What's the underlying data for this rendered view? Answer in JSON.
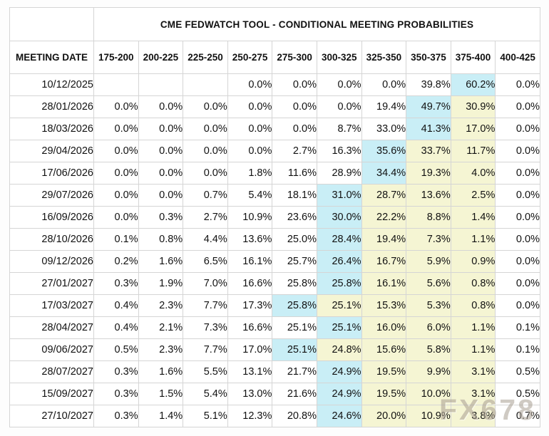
{
  "watermark": "FX678",
  "colors": {
    "max_probability_highlight": "#c9eef6",
    "elevated_probability_highlight": "#f5f5d3",
    "grid_border": "#d5d5d5",
    "watermark_color": "#a99f93"
  },
  "chart_data": {
    "type": "table",
    "title": "CME FEDWATCH TOOL - CONDITIONAL MEETING PROBABILITIES",
    "columns": [
      "MEETING DATE",
      "175-200",
      "200-225",
      "225-250",
      "250-275",
      "275-300",
      "300-325",
      "325-350",
      "350-375",
      "375-400",
      "400-425"
    ],
    "highlight_legend": {
      "c": "highest probability in row (cyan)",
      "y": "elevated probability (pale yellow)"
    },
    "rows": [
      {
        "date": "10/12/2025",
        "values": [
          "",
          "",
          "",
          "0.0%",
          "0.0%",
          "0.0%",
          "0.0%",
          "39.8%",
          "60.2%",
          "0.0%"
        ],
        "highlights": [
          "",
          "",
          "",
          "",
          "",
          "",
          "",
          "",
          "c",
          ""
        ]
      },
      {
        "date": "28/01/2026",
        "values": [
          "0.0%",
          "0.0%",
          "0.0%",
          "0.0%",
          "0.0%",
          "0.0%",
          "19.4%",
          "49.7%",
          "30.9%",
          "0.0%"
        ],
        "highlights": [
          "",
          "",
          "",
          "",
          "",
          "",
          "",
          "c",
          "y",
          ""
        ]
      },
      {
        "date": "18/03/2026",
        "values": [
          "0.0%",
          "0.0%",
          "0.0%",
          "0.0%",
          "0.0%",
          "8.7%",
          "33.0%",
          "41.3%",
          "17.0%",
          "0.0%"
        ],
        "highlights": [
          "",
          "",
          "",
          "",
          "",
          "",
          "",
          "c",
          "y",
          ""
        ]
      },
      {
        "date": "29/04/2026",
        "values": [
          "0.0%",
          "0.0%",
          "0.0%",
          "0.0%",
          "2.7%",
          "16.3%",
          "35.6%",
          "33.7%",
          "11.7%",
          "0.0%"
        ],
        "highlights": [
          "",
          "",
          "",
          "",
          "",
          "",
          "c",
          "y",
          "y",
          ""
        ]
      },
      {
        "date": "17/06/2026",
        "values": [
          "0.0%",
          "0.0%",
          "0.0%",
          "1.8%",
          "11.6%",
          "28.9%",
          "34.4%",
          "19.3%",
          "4.0%",
          "0.0%"
        ],
        "highlights": [
          "",
          "",
          "",
          "",
          "",
          "",
          "c",
          "y",
          "y",
          ""
        ]
      },
      {
        "date": "29/07/2026",
        "values": [
          "0.0%",
          "0.0%",
          "0.7%",
          "5.4%",
          "18.1%",
          "31.0%",
          "28.7%",
          "13.6%",
          "2.5%",
          "0.0%"
        ],
        "highlights": [
          "",
          "",
          "",
          "",
          "",
          "c",
          "y",
          "y",
          "y",
          ""
        ]
      },
      {
        "date": "16/09/2026",
        "values": [
          "0.0%",
          "0.3%",
          "2.7%",
          "10.9%",
          "23.6%",
          "30.0%",
          "22.2%",
          "8.8%",
          "1.4%",
          "0.0%"
        ],
        "highlights": [
          "",
          "",
          "",
          "",
          "",
          "c",
          "y",
          "y",
          "y",
          ""
        ]
      },
      {
        "date": "28/10/2026",
        "values": [
          "0.1%",
          "0.8%",
          "4.4%",
          "13.6%",
          "25.0%",
          "28.4%",
          "19.4%",
          "7.3%",
          "1.1%",
          "0.0%"
        ],
        "highlights": [
          "",
          "",
          "",
          "",
          "",
          "c",
          "y",
          "y",
          "y",
          ""
        ]
      },
      {
        "date": "09/12/2026",
        "values": [
          "0.2%",
          "1.6%",
          "6.5%",
          "16.1%",
          "25.7%",
          "26.4%",
          "16.7%",
          "5.9%",
          "0.9%",
          "0.0%"
        ],
        "highlights": [
          "",
          "",
          "",
          "",
          "",
          "c",
          "y",
          "y",
          "y",
          ""
        ]
      },
      {
        "date": "27/01/2027",
        "values": [
          "0.3%",
          "1.9%",
          "7.0%",
          "16.6%",
          "25.8%",
          "25.8%",
          "16.1%",
          "5.6%",
          "0.8%",
          "0.0%"
        ],
        "highlights": [
          "",
          "",
          "",
          "",
          "",
          "c",
          "y",
          "y",
          "y",
          ""
        ]
      },
      {
        "date": "17/03/2027",
        "values": [
          "0.4%",
          "2.3%",
          "7.7%",
          "17.3%",
          "25.8%",
          "25.1%",
          "15.3%",
          "5.3%",
          "0.8%",
          "0.0%"
        ],
        "highlights": [
          "",
          "",
          "",
          "",
          "c",
          "y",
          "y",
          "y",
          "y",
          ""
        ]
      },
      {
        "date": "28/04/2027",
        "values": [
          "0.4%",
          "2.1%",
          "7.3%",
          "16.6%",
          "25.1%",
          "25.1%",
          "16.0%",
          "6.0%",
          "1.1%",
          "0.1%"
        ],
        "highlights": [
          "",
          "",
          "",
          "",
          "",
          "c",
          "y",
          "y",
          "y",
          ""
        ]
      },
      {
        "date": "09/06/2027",
        "values": [
          "0.5%",
          "2.3%",
          "7.7%",
          "17.0%",
          "25.1%",
          "24.8%",
          "15.6%",
          "5.8%",
          "1.1%",
          "0.1%"
        ],
        "highlights": [
          "",
          "",
          "",
          "",
          "c",
          "y",
          "y",
          "y",
          "y",
          ""
        ]
      },
      {
        "date": "28/07/2027",
        "values": [
          "0.3%",
          "1.6%",
          "5.5%",
          "13.1%",
          "21.7%",
          "24.9%",
          "19.5%",
          "9.9%",
          "3.1%",
          "0.5%"
        ],
        "highlights": [
          "",
          "",
          "",
          "",
          "",
          "c",
          "y",
          "y",
          "y",
          ""
        ]
      },
      {
        "date": "15/09/2027",
        "values": [
          "0.3%",
          "1.5%",
          "5.4%",
          "13.0%",
          "21.6%",
          "24.9%",
          "19.5%",
          "10.0%",
          "3.1%",
          "0.5%"
        ],
        "highlights": [
          "",
          "",
          "",
          "",
          "",
          "c",
          "y",
          "y",
          "y",
          ""
        ]
      },
      {
        "date": "27/10/2027",
        "values": [
          "0.3%",
          "1.4%",
          "5.1%",
          "12.3%",
          "20.8%",
          "24.6%",
          "20.0%",
          "10.9%",
          "3.8%",
          "0.7%"
        ],
        "highlights": [
          "",
          "",
          "",
          "",
          "",
          "c",
          "y",
          "y",
          "y",
          ""
        ]
      }
    ]
  }
}
